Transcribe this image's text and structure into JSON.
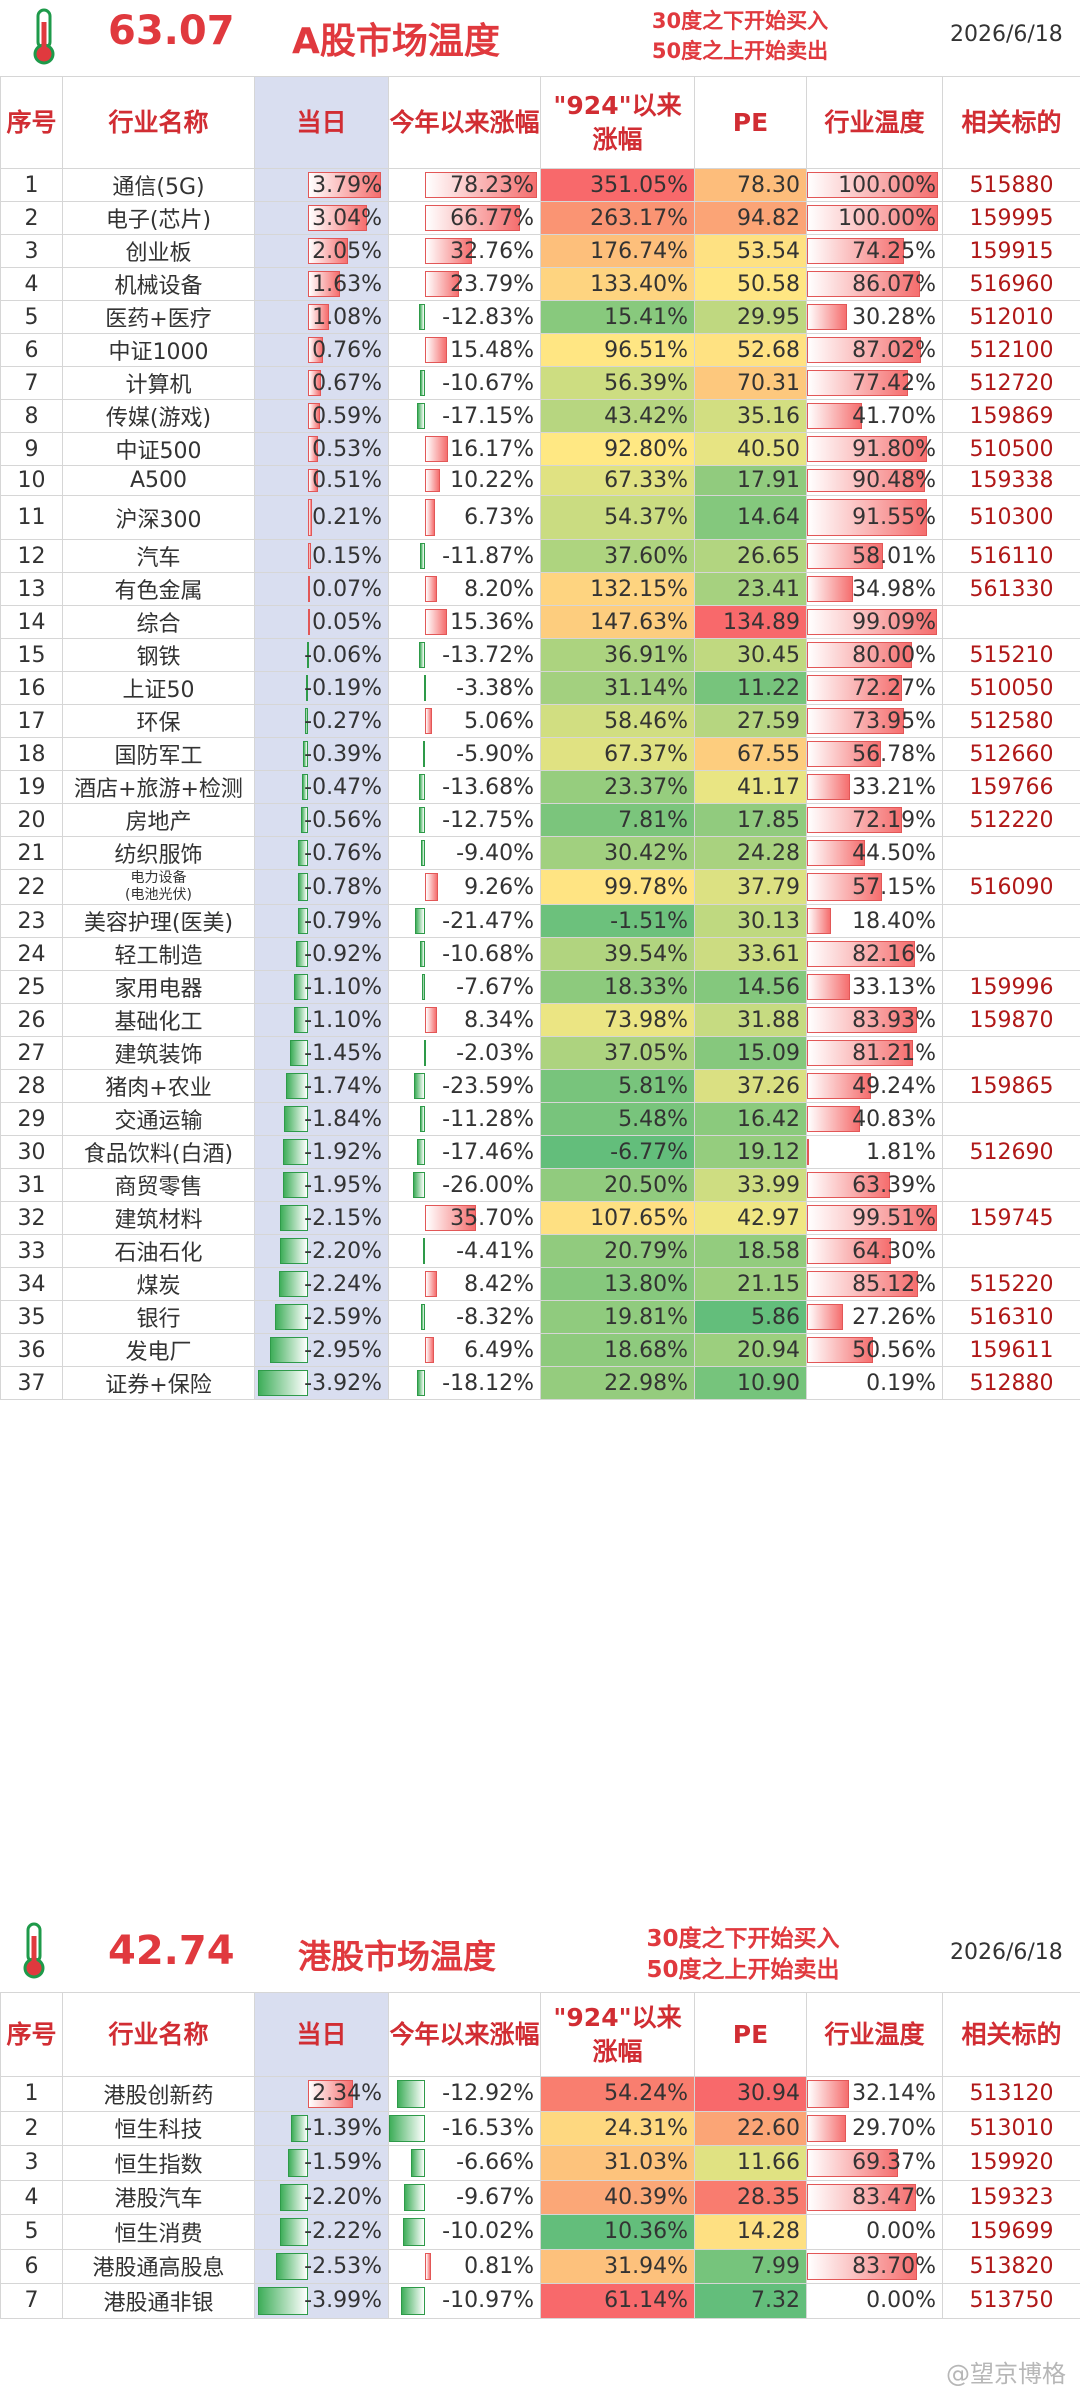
{
  "a_share": {
    "temperature": "63.07",
    "title": "A股市场温度",
    "note_line1": "30度之下开始买入",
    "note_line2": "50度之上开始卖出",
    "date": "2026/6/18",
    "headers": {
      "seq": "序号",
      "name": "行业名称",
      "day": "当日",
      "ytd": "今年以来涨幅",
      "since924": "\"924\"以来涨幅",
      "pe": "PE",
      "temp": "行业温度",
      "code": "相关标的"
    },
    "rows": [
      {
        "seq": "1",
        "name": "通信(5G)",
        "day": "3.79%",
        "ytd": "78.23%",
        "s924": "351.05%",
        "pe": "78.30",
        "temp": "100.00%",
        "code": "515880"
      },
      {
        "seq": "2",
        "name": "电子(芯片)",
        "day": "3.04%",
        "ytd": "66.77%",
        "s924": "263.17%",
        "pe": "94.82",
        "temp": "100.00%",
        "code": "159995"
      },
      {
        "seq": "3",
        "name": "创业板",
        "day": "2.05%",
        "ytd": "32.76%",
        "s924": "176.74%",
        "pe": "53.54",
        "temp": "74.25%",
        "code": "159915"
      },
      {
        "seq": "4",
        "name": "机械设备",
        "day": "1.63%",
        "ytd": "23.79%",
        "s924": "133.40%",
        "pe": "50.58",
        "temp": "86.07%",
        "code": "516960"
      },
      {
        "seq": "5",
        "name": "医药+医疗",
        "day": "1.08%",
        "ytd": "-12.83%",
        "s924": "15.41%",
        "pe": "29.95",
        "temp": "30.28%",
        "code": "512010"
      },
      {
        "seq": "6",
        "name": "中证1000",
        "day": "0.76%",
        "ytd": "15.48%",
        "s924": "96.51%",
        "pe": "52.68",
        "temp": "87.02%",
        "code": "512100"
      },
      {
        "seq": "7",
        "name": "计算机",
        "day": "0.67%",
        "ytd": "-10.67%",
        "s924": "56.39%",
        "pe": "70.31",
        "temp": "77.42%",
        "code": "512720"
      },
      {
        "seq": "8",
        "name": "传媒(游戏)",
        "day": "0.59%",
        "ytd": "-17.15%",
        "s924": "43.42%",
        "pe": "35.16",
        "temp": "41.70%",
        "code": "159869"
      },
      {
        "seq": "9",
        "name": "中证500",
        "day": "0.53%",
        "ytd": "16.17%",
        "s924": "92.80%",
        "pe": "40.50",
        "temp": "91.80%",
        "code": "510500"
      },
      {
        "seq": "10",
        "name": "A500",
        "day": "0.51%",
        "ytd": "10.22%",
        "s924": "67.33%",
        "pe": "17.91",
        "temp": "90.48%",
        "code": "159338"
      },
      {
        "seq": "11",
        "name": "沪深300",
        "day": "0.21%",
        "ytd": "6.73%",
        "s924": "54.37%",
        "pe": "14.64",
        "temp": "91.55%",
        "code": "510300"
      },
      {
        "seq": "12",
        "name": "汽车",
        "day": "0.15%",
        "ytd": "-11.87%",
        "s924": "37.60%",
        "pe": "26.65",
        "temp": "58.01%",
        "code": "516110"
      },
      {
        "seq": "13",
        "name": "有色金属",
        "day": "0.07%",
        "ytd": "8.20%",
        "s924": "132.15%",
        "pe": "23.41",
        "temp": "34.98%",
        "code": "561330"
      },
      {
        "seq": "14",
        "name": "综合",
        "day": "0.05%",
        "ytd": "15.36%",
        "s924": "147.63%",
        "pe": "134.89",
        "temp": "99.09%",
        "code": ""
      },
      {
        "seq": "15",
        "name": "钢铁",
        "day": "-0.06%",
        "ytd": "-13.72%",
        "s924": "36.91%",
        "pe": "30.45",
        "temp": "80.00%",
        "code": "515210"
      },
      {
        "seq": "16",
        "name": "上证50",
        "day": "-0.19%",
        "ytd": "-3.38%",
        "s924": "31.14%",
        "pe": "11.22",
        "temp": "72.27%",
        "code": "510050"
      },
      {
        "seq": "17",
        "name": "环保",
        "day": "-0.27%",
        "ytd": "5.06%",
        "s924": "58.46%",
        "pe": "27.59",
        "temp": "73.95%",
        "code": "512580"
      },
      {
        "seq": "18",
        "name": "国防军工",
        "day": "-0.39%",
        "ytd": "-5.90%",
        "s924": "67.37%",
        "pe": "67.55",
        "temp": "56.78%",
        "code": "512660"
      },
      {
        "seq": "19",
        "name": "酒店+旅游+检测",
        "day": "-0.47%",
        "ytd": "-13.68%",
        "s924": "23.37%",
        "pe": "41.17",
        "temp": "33.21%",
        "code": "159766"
      },
      {
        "seq": "20",
        "name": "房地产",
        "day": "-0.56%",
        "ytd": "-12.75%",
        "s924": "7.81%",
        "pe": "17.85",
        "temp": "72.19%",
        "code": "512220"
      },
      {
        "seq": "21",
        "name": "纺织服饰",
        "day": "-0.76%",
        "ytd": "-9.40%",
        "s924": "30.42%",
        "pe": "24.28",
        "temp": "44.50%",
        "code": ""
      },
      {
        "seq": "22",
        "name": "电力设备\n(电池光伏)",
        "day": "-0.78%",
        "ytd": "9.26%",
        "s924": "99.78%",
        "pe": "37.79",
        "temp": "57.15%",
        "code": "516090"
      },
      {
        "seq": "23",
        "name": "美容护理(医美)",
        "day": "-0.79%",
        "ytd": "-21.47%",
        "s924": "-1.51%",
        "pe": "30.13",
        "temp": "18.40%",
        "code": ""
      },
      {
        "seq": "24",
        "name": "轻工制造",
        "day": "-0.92%",
        "ytd": "-10.68%",
        "s924": "39.54%",
        "pe": "33.61",
        "temp": "82.16%",
        "code": ""
      },
      {
        "seq": "25",
        "name": "家用电器",
        "day": "-1.10%",
        "ytd": "-7.67%",
        "s924": "18.33%",
        "pe": "14.56",
        "temp": "33.13%",
        "code": "159996"
      },
      {
        "seq": "26",
        "name": "基础化工",
        "day": "-1.10%",
        "ytd": "8.34%",
        "s924": "73.98%",
        "pe": "31.88",
        "temp": "83.93%",
        "code": "159870"
      },
      {
        "seq": "27",
        "name": "建筑装饰",
        "day": "-1.45%",
        "ytd": "-2.03%",
        "s924": "37.05%",
        "pe": "15.09",
        "temp": "81.21%",
        "code": ""
      },
      {
        "seq": "28",
        "name": "猪肉+农业",
        "day": "-1.74%",
        "ytd": "-23.59%",
        "s924": "5.81%",
        "pe": "37.26",
        "temp": "49.24%",
        "code": "159865"
      },
      {
        "seq": "29",
        "name": "交通运输",
        "day": "-1.84%",
        "ytd": "-11.28%",
        "s924": "5.48%",
        "pe": "16.42",
        "temp": "40.83%",
        "code": ""
      },
      {
        "seq": "30",
        "name": "食品饮料(白酒)",
        "day": "-1.92%",
        "ytd": "-17.46%",
        "s924": "-6.77%",
        "pe": "19.12",
        "temp": "1.81%",
        "code": "512690"
      },
      {
        "seq": "31",
        "name": "商贸零售",
        "day": "-1.95%",
        "ytd": "-26.00%",
        "s924": "20.50%",
        "pe": "33.99",
        "temp": "63.39%",
        "code": ""
      },
      {
        "seq": "32",
        "name": "建筑材料",
        "day": "-2.15%",
        "ytd": "35.70%",
        "s924": "107.65%",
        "pe": "42.97",
        "temp": "99.51%",
        "code": "159745"
      },
      {
        "seq": "33",
        "name": "石油石化",
        "day": "-2.20%",
        "ytd": "-4.41%",
        "s924": "20.79%",
        "pe": "18.58",
        "temp": "64.30%",
        "code": ""
      },
      {
        "seq": "34",
        "name": "煤炭",
        "day": "-2.24%",
        "ytd": "8.42%",
        "s924": "13.80%",
        "pe": "21.15",
        "temp": "85.12%",
        "code": "515220"
      },
      {
        "seq": "35",
        "name": "银行",
        "day": "-2.59%",
        "ytd": "-8.32%",
        "s924": "19.81%",
        "pe": "5.86",
        "temp": "27.26%",
        "code": "516310"
      },
      {
        "seq": "36",
        "name": "发电厂",
        "day": "-2.95%",
        "ytd": "6.49%",
        "s924": "18.68%",
        "pe": "20.94",
        "temp": "50.56%",
        "code": "159611"
      },
      {
        "seq": "37",
        "name": "证券+保险",
        "day": "-3.92%",
        "ytd": "-18.12%",
        "s924": "22.98%",
        "pe": "10.90",
        "temp": "0.19%",
        "code": "512880"
      }
    ]
  },
  "hk_share": {
    "temperature": "42.74",
    "title": "港股市场温度",
    "note_line1": "30度之下开始买入",
    "note_line2": "50度之上开始卖出",
    "date": "2026/6/18",
    "headers": {
      "seq": "序号",
      "name": "行业名称",
      "day": "当日",
      "ytd": "今年以来涨幅",
      "since924": "\"924\"以来涨幅",
      "pe": "PE",
      "temp": "行业温度",
      "code": "相关标的"
    },
    "rows": [
      {
        "seq": "1",
        "name": "港股创新药",
        "day": "2.34%",
        "ytd": "-12.92%",
        "s924": "54.24%",
        "pe": "30.94",
        "temp": "32.14%",
        "code": "513120"
      },
      {
        "seq": "2",
        "name": "恒生科技",
        "day": "-1.39%",
        "ytd": "-16.53%",
        "s924": "24.31%",
        "pe": "22.60",
        "temp": "29.70%",
        "code": "513010"
      },
      {
        "seq": "3",
        "name": "恒生指数",
        "day": "-1.59%",
        "ytd": "-6.66%",
        "s924": "31.03%",
        "pe": "11.66",
        "temp": "69.37%",
        "code": "159920"
      },
      {
        "seq": "4",
        "name": "港股汽车",
        "day": "-2.20%",
        "ytd": "-9.67%",
        "s924": "40.39%",
        "pe": "28.35",
        "temp": "83.47%",
        "code": "159323"
      },
      {
        "seq": "5",
        "name": "恒生消费",
        "day": "-2.22%",
        "ytd": "-10.02%",
        "s924": "10.36%",
        "pe": "14.28",
        "temp": "0.00%",
        "code": "159699"
      },
      {
        "seq": "6",
        "name": "港股通高股息",
        "day": "-2.53%",
        "ytd": "0.81%",
        "s924": "31.94%",
        "pe": "7.99",
        "temp": "83.70%",
        "code": "513820"
      },
      {
        "seq": "7",
        "name": "港股通非银",
        "day": "-3.99%",
        "ytd": "-10.97%",
        "s924": "61.14%",
        "pe": "7.32",
        "temp": "0.00%",
        "code": "513750"
      }
    ]
  },
  "watermark": "@望京博格"
}
